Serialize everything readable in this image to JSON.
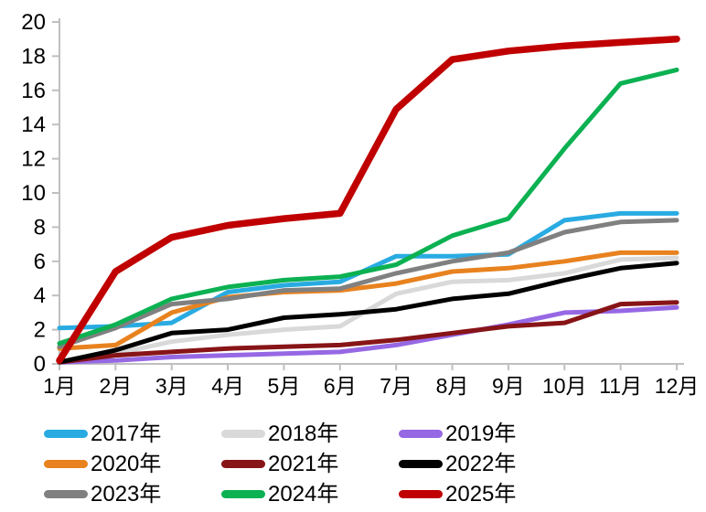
{
  "chart_data": {
    "type": "line",
    "title": "",
    "xlabel": "",
    "ylabel": "",
    "categories": [
      "1月",
      "2月",
      "3月",
      "4月",
      "5月",
      "6月",
      "7月",
      "8月",
      "9月",
      "10月",
      "11月",
      "12月"
    ],
    "series": [
      {
        "name": "2017年",
        "color": "#29ABE2",
        "values": [
          2.1,
          2.2,
          2.4,
          4.2,
          4.6,
          4.8,
          6.3,
          6.3,
          6.4,
          8.4,
          8.8,
          8.8
        ]
      },
      {
        "name": "2018年",
        "color": "#D9D9D9",
        "values": [
          0.1,
          0.6,
          1.3,
          1.7,
          2.0,
          2.2,
          4.1,
          4.8,
          4.9,
          5.3,
          6.1,
          6.2
        ]
      },
      {
        "name": "2019年",
        "color": "#9668E4",
        "values": [
          0.1,
          0.2,
          0.4,
          0.5,
          0.6,
          0.7,
          1.1,
          1.7,
          2.3,
          3.0,
          3.1,
          3.3
        ]
      },
      {
        "name": "2020年",
        "color": "#E8821F",
        "values": [
          0.9,
          1.1,
          3.0,
          3.9,
          4.2,
          4.3,
          4.7,
          5.4,
          5.6,
          6.0,
          6.5,
          6.5
        ]
      },
      {
        "name": "2021年",
        "color": "#871417",
        "values": [
          0.1,
          0.5,
          0.7,
          0.9,
          1.0,
          1.1,
          1.4,
          1.8,
          2.2,
          2.4,
          3.5,
          3.6
        ]
      },
      {
        "name": "2022年",
        "color": "#000000",
        "values": [
          0.1,
          0.8,
          1.8,
          2.0,
          2.7,
          2.9,
          3.2,
          3.8,
          4.1,
          4.9,
          5.6,
          5.9
        ]
      },
      {
        "name": "2023年",
        "color": "#808080",
        "values": [
          1.0,
          2.1,
          3.5,
          3.8,
          4.3,
          4.4,
          5.3,
          6.0,
          6.5,
          7.7,
          8.3,
          8.4
        ]
      },
      {
        "name": "2024年",
        "color": "#0CB152",
        "values": [
          1.2,
          2.3,
          3.8,
          4.5,
          4.9,
          5.1,
          5.8,
          7.5,
          8.5,
          12.6,
          16.4,
          17.2
        ]
      },
      {
        "name": "2025年",
        "color": "#C00000",
        "values": [
          0.2,
          5.4,
          7.4,
          8.1,
          8.5,
          8.8,
          14.9,
          17.8,
          18.3,
          18.6,
          18.8,
          19.0
        ]
      }
    ],
    "ylim": [
      0,
      20
    ],
    "ytick_step": 2,
    "grid": "off",
    "legend_position": "bottom"
  },
  "axis": {
    "line_color": "#BFBFBF",
    "label_color": "#000000"
  }
}
